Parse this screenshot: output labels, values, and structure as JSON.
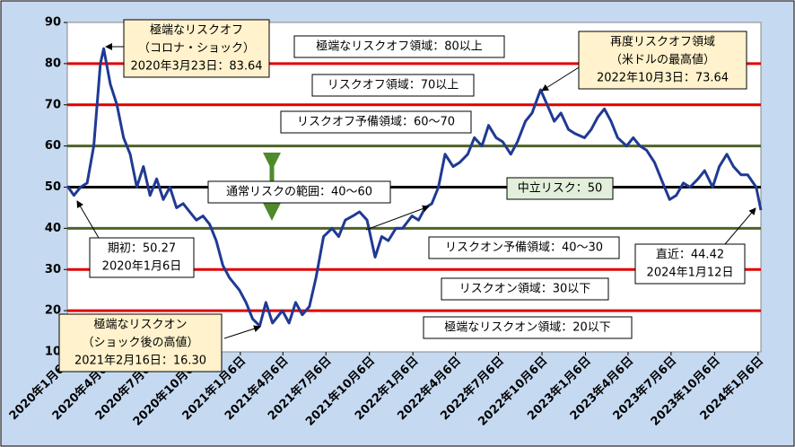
{
  "chart_data": {
    "type": "line",
    "color": "#1f3a93",
    "x": [
      "2020-01-06",
      "2020-01-20",
      "2020-02-03",
      "2020-02-17",
      "2020-03-02",
      "2020-03-09",
      "2020-03-16",
      "2020-03-23",
      "2020-04-06",
      "2020-04-20",
      "2020-05-04",
      "2020-05-18",
      "2020-06-01",
      "2020-06-15",
      "2020-06-29",
      "2020-07-13",
      "2020-07-27",
      "2020-08-10",
      "2020-08-24",
      "2020-09-07",
      "2020-09-21",
      "2020-10-05",
      "2020-10-19",
      "2020-11-02",
      "2020-11-16",
      "2020-11-30",
      "2020-12-14",
      "2021-01-04",
      "2021-01-18",
      "2021-02-01",
      "2021-02-16",
      "2021-03-01",
      "2021-03-15",
      "2021-04-05",
      "2021-04-19",
      "2021-05-03",
      "2021-05-17",
      "2021-06-01",
      "2021-06-15",
      "2021-07-01",
      "2021-07-19",
      "2021-08-02",
      "2021-08-16",
      "2021-09-01",
      "2021-09-15",
      "2021-10-01",
      "2021-10-18",
      "2021-11-01",
      "2021-11-15",
      "2021-12-01",
      "2021-12-15",
      "2022-01-04",
      "2022-01-18",
      "2022-02-01",
      "2022-02-15",
      "2022-03-01",
      "2022-03-15",
      "2022-04-01",
      "2022-04-15",
      "2022-05-02",
      "2022-05-16",
      "2022-06-01",
      "2022-06-15",
      "2022-07-01",
      "2022-07-15",
      "2022-08-01",
      "2022-08-15",
      "2022-09-01",
      "2022-09-15",
      "2022-10-03",
      "2022-10-17",
      "2022-11-01",
      "2022-11-15",
      "2022-12-01",
      "2022-12-15",
      "2023-01-04",
      "2023-01-18",
      "2023-02-01",
      "2023-02-15",
      "2023-03-01",
      "2023-03-15",
      "2023-04-03",
      "2023-04-17",
      "2023-05-01",
      "2023-05-15",
      "2023-06-01",
      "2023-06-15",
      "2023-07-03",
      "2023-07-17",
      "2023-08-01",
      "2023-08-15",
      "2023-09-01",
      "2023-09-15",
      "2023-10-02",
      "2023-10-16",
      "2023-11-01",
      "2023-11-15",
      "2023-12-01",
      "2023-12-15",
      "2024-01-02",
      "2024-01-12"
    ],
    "values": [
      50.27,
      48,
      50,
      51,
      60,
      70,
      80,
      83.64,
      75,
      70,
      62,
      58,
      50,
      55,
      48,
      52,
      47,
      50,
      45,
      46,
      44,
      42,
      43,
      41,
      37,
      31,
      28,
      25,
      22,
      18,
      16.3,
      22,
      17,
      20,
      17,
      22,
      19,
      21,
      28,
      38,
      40,
      38,
      42,
      43,
      44,
      42,
      33,
      38,
      37,
      40,
      40,
      43,
      42,
      45,
      46,
      50,
      58,
      55,
      56,
      58,
      62,
      60,
      65,
      62,
      61,
      58,
      61,
      66,
      68,
      73.64,
      70,
      66,
      68,
      64,
      63,
      62,
      64,
      67,
      69,
      66,
      62,
      60,
      62,
      60,
      59,
      56,
      52,
      47,
      48,
      51,
      50,
      52,
      54,
      50,
      55,
      58,
      55,
      53,
      53,
      50,
      44.42
    ],
    "xlim": [
      "2020-01-06",
      "2024-01-12"
    ],
    "xticks": [
      {
        "value": "2020-01-06",
        "label": "2020年1月6日"
      },
      {
        "value": "2020-04-06",
        "label": "2020年4月6日"
      },
      {
        "value": "2020-07-06",
        "label": "2020年7月6日"
      },
      {
        "value": "2020-10-06",
        "label": "2020年10月6日"
      },
      {
        "value": "2021-01-06",
        "label": "2021年1月6日"
      },
      {
        "value": "2021-04-06",
        "label": "2021年4月6日"
      },
      {
        "value": "2021-07-06",
        "label": "2021年7月6日"
      },
      {
        "value": "2021-10-06",
        "label": "2021年10月6日"
      },
      {
        "value": "2022-01-06",
        "label": "2022年1月6日"
      },
      {
        "value": "2022-04-06",
        "label": "2022年4月6日"
      },
      {
        "value": "2022-07-06",
        "label": "2022年7月6日"
      },
      {
        "value": "2022-10-06",
        "label": "2022年10月6日"
      },
      {
        "value": "2023-01-06",
        "label": "2023年1月6日"
      },
      {
        "value": "2023-04-06",
        "label": "2023年4月6日"
      },
      {
        "value": "2023-07-06",
        "label": "2023年7月6日"
      },
      {
        "value": "2023-10-06",
        "label": "2023年10月6日"
      },
      {
        "value": "2024-01-06",
        "label": "2024年1月6日"
      }
    ],
    "ylim": [
      10,
      90
    ],
    "yticks": [
      10,
      20,
      30,
      40,
      50,
      60,
      70,
      80,
      90
    ],
    "reference_lines": [
      {
        "value": 80,
        "color": "#e00000"
      },
      {
        "value": 70,
        "color": "#e00000"
      },
      {
        "value": 60,
        "color": "#4f6228"
      },
      {
        "value": 50,
        "color": "#000000"
      },
      {
        "value": 40,
        "color": "#4f6228"
      },
      {
        "value": 30,
        "color": "#e00000"
      },
      {
        "value": 20,
        "color": "#e00000"
      }
    ],
    "annotations": [
      {
        "lines": [
          "極端なリスクオフ",
          "（コロナ・ショック）",
          "2020年3月23日：83.64"
        ],
        "fill": "#fff2cc"
      },
      {
        "lines": [
          "極端なリスクオフ領域：80以上"
        ],
        "fill": "#ffffff"
      },
      {
        "lines": [
          "リスクオフ領域：70以上"
        ],
        "fill": "#ffffff"
      },
      {
        "lines": [
          "リスクオフ予備領域：60～70"
        ],
        "fill": "#ffffff"
      },
      {
        "lines": [
          "通常リスクの範囲：40～60"
        ],
        "fill": "#ffffff"
      },
      {
        "lines": [
          "中立リスク：50"
        ],
        "fill": "#e2efda"
      },
      {
        "lines": [
          "再度リスクオフ領域",
          "（米ドルの最高値）",
          "2022年10月3日：73.64"
        ],
        "fill": "#fff2cc"
      },
      {
        "lines": [
          "期初：50.27",
          "2020年1月6日"
        ],
        "fill": "#ffffff"
      },
      {
        "lines": [
          "リスクオン予備領域：40～30"
        ],
        "fill": "#ffffff"
      },
      {
        "lines": [
          "直近：44.42",
          "2024年1月12日"
        ],
        "fill": "#ffffff"
      },
      {
        "lines": [
          "リスクオン領域：30以下"
        ],
        "fill": "#ffffff"
      },
      {
        "lines": [
          "極端なリスクオン",
          "（ショック後の高値）",
          "2021年2月16日：16.30"
        ],
        "fill": "#fff2cc"
      },
      {
        "lines": [
          "極端なリスクオン領域：20以下"
        ],
        "fill": "#ffffff"
      }
    ]
  }
}
